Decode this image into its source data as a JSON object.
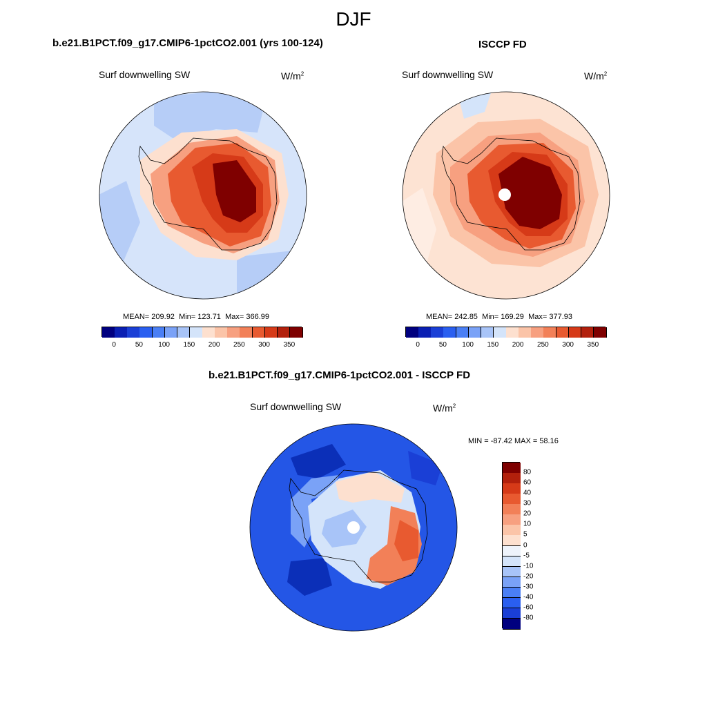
{
  "figure": {
    "title": "DJF",
    "panels": [
      {
        "title": "b.e21.B1PCT.f09_g17.CMIP6-1pctCO2.001 (yrs 100-124)",
        "variable": "Surf downwelling SW",
        "units_base": "W/m",
        "units_exp": "2",
        "stats": {
          "mean_label": "MEAN=",
          "mean": "209.92",
          "min_label": "Min=",
          "min": "123.71",
          "max_label": "Max=",
          "max": "366.99"
        }
      },
      {
        "title": "ISCCP FD",
        "variable": "Surf downwelling SW",
        "units_base": "W/m",
        "units_exp": "2",
        "stats": {
          "mean_label": "MEAN=",
          "mean": "242.85",
          "min_label": "Min=",
          "min": "169.29",
          "max_label": "Max=",
          "max": "377.93"
        }
      },
      {
        "title": "b.e21.B1PCT.f09_g17.CMIP6-1pctCO2.001 - ISCCP FD",
        "variable": "Surf downwelling SW",
        "units_base": "W/m",
        "units_exp": "2",
        "stats_text": "MIN = -87.42 MAX =  58.16"
      }
    ],
    "colorbar_abs": {
      "labels": [
        "0",
        "50",
        "100",
        "150",
        "200",
        "250",
        "300",
        "350"
      ],
      "colors": [
        "#00007f",
        "#0a1fb3",
        "#1a3fd6",
        "#2a5ff0",
        "#4a7ff5",
        "#7aa2f7",
        "#a8c4f8",
        "#d4e4fa",
        "#fde0cf",
        "#fbc4a8",
        "#f7a080",
        "#f28058",
        "#e85a30",
        "#d63a18",
        "#b2200c",
        "#7f0000"
      ]
    },
    "colorbar_diff": {
      "labels": [
        "80",
        "60",
        "40",
        "30",
        "20",
        "10",
        "5",
        "0",
        "-5",
        "-10",
        "-20",
        "-30",
        "-40",
        "-60",
        "-80"
      ],
      "colors": [
        "#7f0000",
        "#b2200c",
        "#d63a18",
        "#e85a30",
        "#f28058",
        "#f7a080",
        "#fbc4a8",
        "#fde0cf",
        "#eef3fb",
        "#d4e4fa",
        "#a8c4f8",
        "#7aa2f7",
        "#4a7ff5",
        "#2a5ff0",
        "#1a3fd6",
        "#00007f"
      ]
    },
    "map_colors": {
      "ocean_model": "#d6e4fa",
      "ocean_model_dark": "#b6cdf7",
      "ocean_obs": "#fde3d3",
      "ocean_obs_light": "#feede3",
      "ocean_diff": "#2456e6",
      "ocean_diff_dark": "#0b2fb8",
      "missing": "#ffffff"
    }
  }
}
